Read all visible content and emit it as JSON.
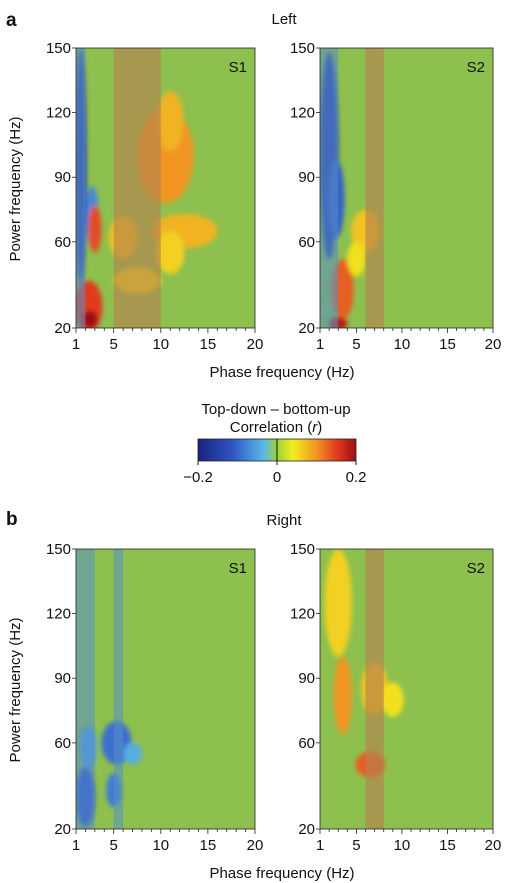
{
  "chart_data": {
    "type": "heatmap",
    "sections": [
      {
        "letter": "a",
        "title": "Left",
        "panels": [
          {
            "label": "S1",
            "bands": [
              {
                "x": [
                  1,
                  2
                ],
                "shade": "blue"
              },
              {
                "x": [
                  5,
                  10
                ],
                "shade": "brown"
              }
            ],
            "blobs": [
              {
                "cx": 1.5,
                "cy": 95,
                "rx": 0.6,
                "ry": 55,
                "value": -0.15
              },
              {
                "cx": 2.7,
                "cy": 72,
                "rx": 0.7,
                "ry": 14,
                "value": -0.08
              },
              {
                "cx": 10.5,
                "cy": 100,
                "rx": 3.0,
                "ry": 22,
                "value": 0.1
              },
              {
                "cx": 11,
                "cy": 116,
                "rx": 1.4,
                "ry": 14,
                "value": 0.08
              },
              {
                "cx": 12.5,
                "cy": 65,
                "rx": 3.5,
                "ry": 8,
                "value": 0.08
              },
              {
                "cx": 11,
                "cy": 55,
                "rx": 1.5,
                "ry": 10,
                "value": 0.06
              },
              {
                "cx": 3,
                "cy": 66,
                "rx": 0.7,
                "ry": 11,
                "value": 0.14
              },
              {
                "cx": 6,
                "cy": 62,
                "rx": 1.5,
                "ry": 10,
                "value": 0.07
              },
              {
                "cx": 2.3,
                "cy": 30,
                "rx": 1.5,
                "ry": 12,
                "value": 0.15
              },
              {
                "cx": 2.5,
                "cy": 24,
                "rx": 0.8,
                "ry": 4,
                "value": 0.2
              },
              {
                "cx": 7.5,
                "cy": 42,
                "rx": 2.5,
                "ry": 6,
                "value": 0.05
              }
            ]
          },
          {
            "label": "S2",
            "bands": [
              {
                "x": [
                  1,
                  3
                ],
                "shade": "blue"
              },
              {
                "x": [
                  6,
                  8
                ],
                "shade": "brown"
              }
            ],
            "blobs": [
              {
                "cx": 2,
                "cy": 100,
                "rx": 1.0,
                "ry": 48,
                "value": -0.15
              },
              {
                "cx": 2.8,
                "cy": 80,
                "rx": 0.9,
                "ry": 18,
                "value": -0.11
              },
              {
                "cx": 3.5,
                "cy": 38,
                "rx": 1.2,
                "ry": 14,
                "value": 0.13
              },
              {
                "cx": 3,
                "cy": 22,
                "rx": 1.0,
                "ry": 3,
                "value": 0.18
              },
              {
                "cx": 6,
                "cy": 65,
                "rx": 1.6,
                "ry": 10,
                "value": 0.07
              },
              {
                "cx": 5,
                "cy": 52,
                "rx": 1.0,
                "ry": 8,
                "value": 0.05
              }
            ]
          }
        ]
      },
      {
        "letter": "b",
        "title": "Right",
        "panels": [
          {
            "label": "S1",
            "bands": [
              {
                "x": [
                  1,
                  3
                ],
                "shade": "blue"
              },
              {
                "x": [
                  5,
                  6
                ],
                "shade": "blue"
              }
            ],
            "blobs": [
              {
                "cx": 5.3,
                "cy": 60,
                "rx": 1.6,
                "ry": 10,
                "value": -0.1
              },
              {
                "cx": 5,
                "cy": 38,
                "rx": 0.8,
                "ry": 8,
                "value": -0.09
              },
              {
                "cx": 2,
                "cy": 35,
                "rx": 1.0,
                "ry": 14,
                "value": -0.12
              },
              {
                "cx": 2.3,
                "cy": 58,
                "rx": 0.9,
                "ry": 10,
                "value": -0.06
              },
              {
                "cx": 7,
                "cy": 55,
                "rx": 1.0,
                "ry": 5,
                "value": -0.05
              }
            ]
          },
          {
            "label": "S2",
            "bands": [
              {
                "x": [
                  6,
                  8
                ],
                "shade": "brown"
              }
            ],
            "blobs": [
              {
                "cx": 3,
                "cy": 125,
                "rx": 1.5,
                "ry": 25,
                "value": 0.06
              },
              {
                "cx": 3.5,
                "cy": 82,
                "rx": 1.0,
                "ry": 18,
                "value": 0.1
              },
              {
                "cx": 6.5,
                "cy": 50,
                "rx": 1.6,
                "ry": 6,
                "value": 0.13
              },
              {
                "cx": 7,
                "cy": 85,
                "rx": 1.5,
                "ry": 12,
                "value": 0.07
              },
              {
                "cx": 9,
                "cy": 80,
                "rx": 1.2,
                "ry": 8,
                "value": 0.05
              }
            ]
          }
        ]
      }
    ],
    "x_axis": {
      "label": "Phase frequency (Hz)",
      "range": [
        1,
        20
      ],
      "ticks": [
        1,
        5,
        10,
        15,
        20
      ]
    },
    "y_axis": {
      "label": "Power frequency (Hz)",
      "range": [
        20,
        150
      ],
      "ticks": [
        20,
        60,
        90,
        120,
        150
      ]
    },
    "colorbar": {
      "title_line1": "Top-down – bottom-up",
      "title_line2_prefix": "Correlation (",
      "title_line2_var": "r",
      "title_line2_suffix": ")",
      "range": [
        -0.2,
        0.2
      ],
      "tick_values": [
        -0.2,
        0,
        0.2
      ],
      "tick_labels": [
        "−0.2",
        "0",
        "0.2"
      ]
    },
    "colors": {
      "background": "#8dc04e",
      "blue_band": "#5a8ec9",
      "brown_band": "#b4834f"
    }
  }
}
